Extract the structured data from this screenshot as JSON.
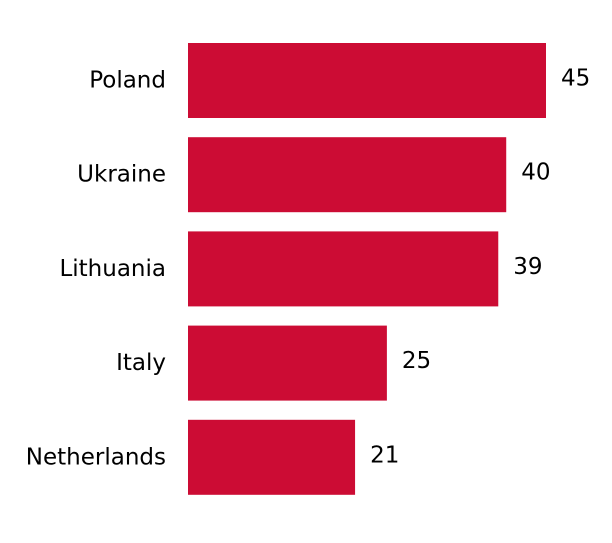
{
  "chart_data": {
    "type": "bar",
    "orientation": "horizontal",
    "title": "",
    "xlabel": "",
    "ylabel": "",
    "categories": [
      "Poland",
      "Ukraine",
      "Lithuania",
      "Italy",
      "Netherlands"
    ],
    "values": [
      45,
      40,
      39,
      25,
      21
    ],
    "xlim": [
      0,
      45
    ],
    "bar_color": "#cc0c34",
    "grid": false,
    "axes_visible": false,
    "data_labels": true
  }
}
